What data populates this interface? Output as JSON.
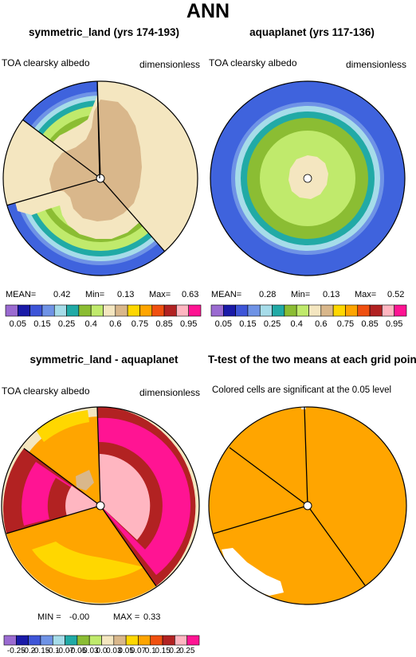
{
  "main_title": "ANN",
  "panels": [
    {
      "title": "symmetric_land (yrs 174-193)",
      "left_label": "TOA clearsky albedo",
      "right_label": "dimensionless"
    },
    {
      "title": "aquaplanet (yrs 117-136)",
      "left_label": "TOA clearsky albedo",
      "right_label": "dimensionless"
    },
    {
      "title": "symmetric_land - aquaplanet",
      "left_label": "TOA clearsky albedo",
      "right_label": "dimensionless"
    },
    {
      "title": "T-test of the two means at each grid point",
      "left_label": "Colored cells are significant at the 0.05 level",
      "right_label": ""
    }
  ],
  "stats": {
    "p1": {
      "mean_label": "MEAN=",
      "mean": "0.42",
      "min_label": "Min=",
      "min": "0.13",
      "max_label": "Max=",
      "max": "0.63"
    },
    "p2": {
      "mean_label": "MEAN=",
      "mean": "0.28",
      "min_label": "Min=",
      "min": "0.13",
      "max_label": "Max=",
      "max": "0.52"
    },
    "p3": {
      "min_label": "MIN =",
      "min": "-0.00",
      "max_label": "MAX =",
      "max": "0.33"
    }
  },
  "colorbars": {
    "abs_colors": [
      "#9b6bd1",
      "#1a1aa8",
      "#3e55d8",
      "#6f93e6",
      "#a6dce9",
      "#21aaa6",
      "#8bbd33",
      "#c0ea6c",
      "#f4e6c0",
      "#d9b78b",
      "#ffd700",
      "#ffa500",
      "#f05010",
      "#b22222",
      "#ffb6c1",
      "#ff1493"
    ],
    "abs_ticks": [
      "0.05",
      "0.15",
      "0.25",
      "0.4",
      "0.6",
      "0.75",
      "0.85",
      "0.95"
    ],
    "diff_colors": [
      "#9b6bd1",
      "#1a1aa8",
      "#3e55d8",
      "#6f93e6",
      "#a6dce9",
      "#21aaa6",
      "#8bbd33",
      "#c0ea6c",
      "#f4e6c0",
      "#d9b78b",
      "#ffd700",
      "#ffa500",
      "#f05010",
      "#b22222",
      "#ffb6c1",
      "#ff1493"
    ],
    "diff_ticks": [
      "-0.25",
      "-0.2",
      "-0.15",
      "-0.1",
      "-0.07",
      "-0.05",
      "-0.03",
      "0.0",
      "0.03",
      "0.05",
      "0.07",
      "0.1",
      "0.15",
      "0.2",
      "0.25"
    ]
  },
  "colors": {
    "land_tan": "#d9b78b",
    "cream": "#f4e6c0",
    "lime": "#c0ea6c",
    "green": "#8bbd33",
    "teal": "#21aaa6",
    "light_blue": "#a6dce9",
    "blue": "#3f63dd",
    "orange": "#ffa500",
    "pink": "#ff1493",
    "dark_red": "#b22222"
  },
  "chart_data": [
    {
      "type": "heatmap",
      "title": "symmetric_land (yrs 174-193)",
      "variable": "TOA clearsky albedo",
      "units": "dimensionless",
      "mean": 0.42,
      "min": 0.13,
      "max": 0.63,
      "levels": [
        0.05,
        0.1,
        0.15,
        0.2,
        0.25,
        0.3,
        0.4,
        0.5,
        0.6,
        0.7,
        0.75,
        0.8,
        0.85,
        0.9,
        0.95
      ]
    },
    {
      "type": "heatmap",
      "title": "aquaplanet (yrs 117-136)",
      "variable": "TOA clearsky albedo",
      "units": "dimensionless",
      "mean": 0.28,
      "min": 0.13,
      "max": 0.52,
      "levels": [
        0.05,
        0.1,
        0.15,
        0.2,
        0.25,
        0.3,
        0.4,
        0.5,
        0.6,
        0.7,
        0.75,
        0.8,
        0.85,
        0.9,
        0.95
      ]
    },
    {
      "type": "heatmap",
      "title": "symmetric_land - aquaplanet",
      "variable": "TOA clearsky albedo",
      "units": "dimensionless",
      "min": -0.0,
      "max": 0.33,
      "levels": [
        -0.25,
        -0.2,
        -0.15,
        -0.1,
        -0.07,
        -0.05,
        -0.03,
        0.0,
        0.03,
        0.05,
        0.07,
        0.1,
        0.15,
        0.2,
        0.25
      ]
    },
    {
      "type": "heatmap",
      "title": "T-test of the two means at each grid point",
      "note": "Colored cells are significant at the 0.05 level"
    }
  ]
}
